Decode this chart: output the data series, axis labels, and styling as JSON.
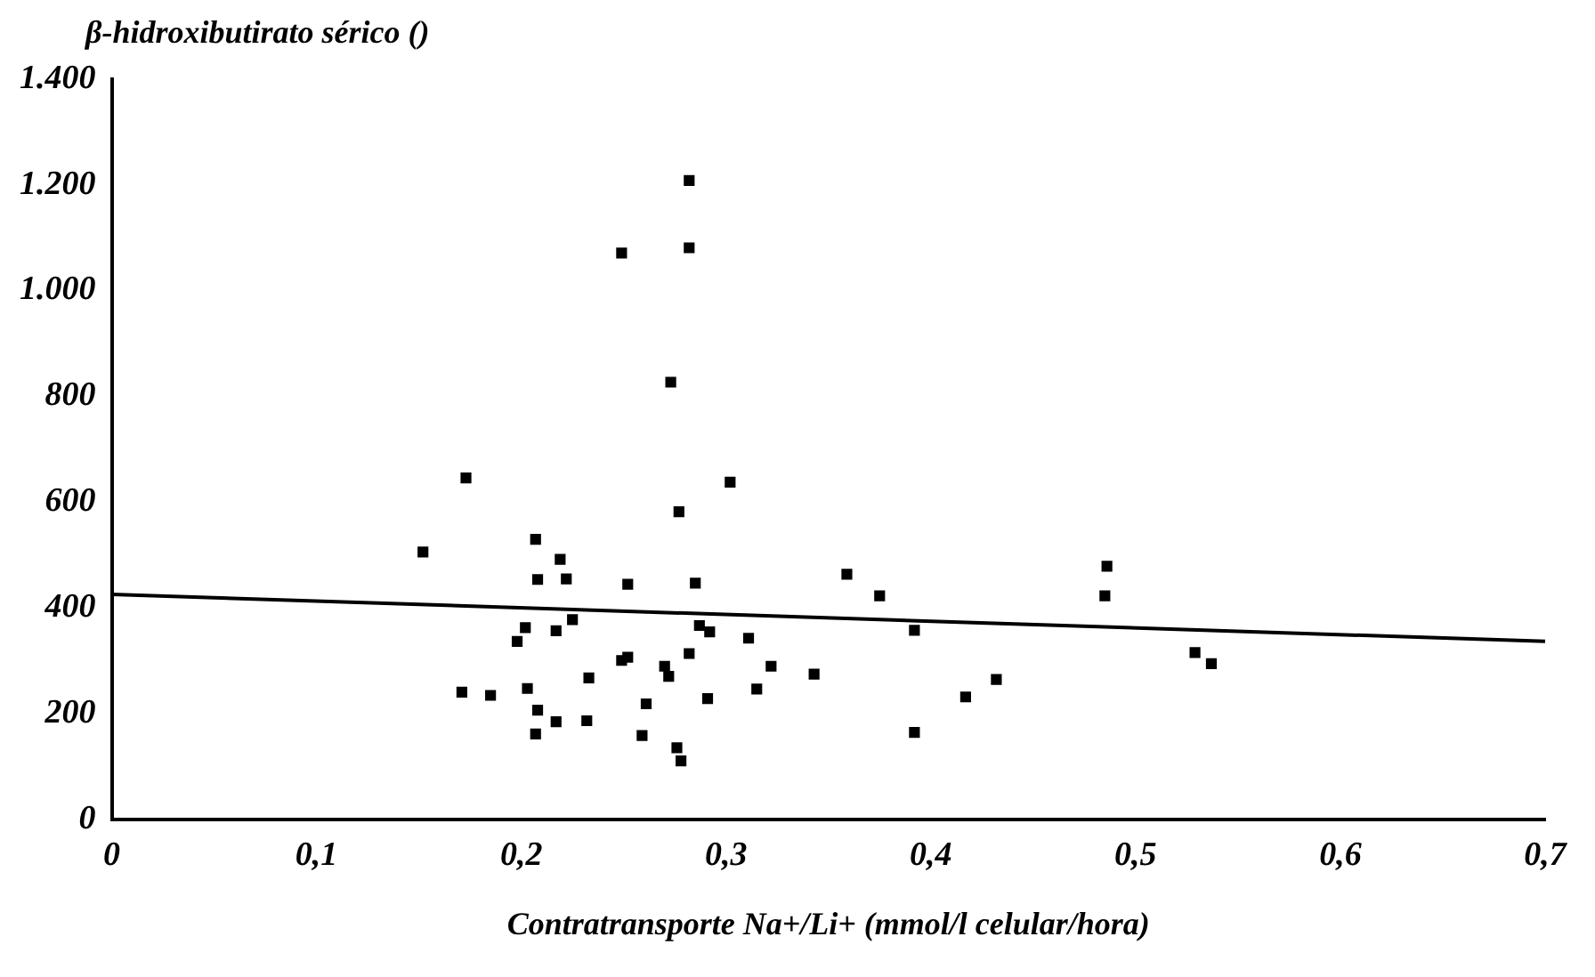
{
  "chart_data": {
    "type": "scatter",
    "ylabel": "β-hidroxibutirato sérico ()",
    "xlabel": "Contratransporte Na+/Li+ (mmol/l celular/hora)",
    "xlim": [
      0,
      0.7
    ],
    "xticks": [
      0,
      {
        "value": 0.1,
        "label": "0,1"
      },
      {
        "value": 0.2,
        "label": "0,2"
      },
      {
        "value": 0.3,
        "label": "0,3"
      },
      {
        "value": 0.4,
        "label": "0,4"
      },
      {
        "value": 0.5,
        "label": "0,5"
      },
      {
        "value": 0.6,
        "label": "0,6"
      },
      {
        "value": 0.7,
        "label": "0,7"
      }
    ],
    "ylim": [
      0,
      1400
    ],
    "yticks": [
      0,
      200,
      400,
      600,
      800,
      {
        "value": 1000,
        "label": "1.000"
      },
      {
        "value": 1200,
        "label": "1.200"
      },
      {
        "value": 1400,
        "label": "1.400"
      }
    ],
    "grid": false,
    "legend": false,
    "marker": "square",
    "series": [
      {
        "color": "#000000",
        "x": [
          0.152,
          0.173,
          0.171,
          0.185,
          0.198,
          0.202,
          0.203,
          0.207,
          0.207,
          0.208,
          0.208,
          0.217,
          0.217,
          0.219,
          0.222,
          0.225,
          0.232,
          0.233,
          0.249,
          0.249,
          0.252,
          0.252,
          0.259,
          0.261,
          0.27,
          0.272,
          0.273,
          0.276,
          0.278,
          0.277,
          0.282,
          0.282,
          0.282,
          0.285,
          0.287,
          0.291,
          0.292,
          0.302,
          0.311,
          0.315,
          0.322,
          0.343,
          0.359,
          0.375,
          0.392,
          0.392,
          0.417,
          0.432,
          0.486,
          0.485,
          0.529,
          0.537
        ],
        "values": [
          506,
          646,
          241,
          235,
          337,
          363,
          248,
          162,
          530,
          454,
          207,
          185,
          357,
          492,
          455,
          378,
          187,
          268,
          1071,
          301,
          307,
          445,
          159,
          219,
          290,
          271,
          827,
          136,
          111,
          582,
          1208,
          1081,
          314,
          447,
          367,
          229,
          355,
          638,
          343,
          247,
          290,
          275,
          464,
          423,
          358,
          165,
          232,
          265,
          479,
          423,
          316,
          295
        ]
      },
      {
        "type": "line",
        "color": "#000000",
        "marker": "none",
        "line_style": "solid",
        "x": [
          0,
          0.7
        ],
        "values": [
          426,
          337
        ]
      }
    ]
  }
}
